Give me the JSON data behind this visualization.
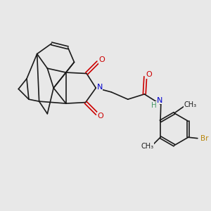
{
  "bg_color": "#e8e8e8",
  "bond_color": "#1a1a1a",
  "atoms": {
    "N": {
      "color": "#0000cc"
    },
    "O": {
      "color": "#cc0000"
    },
    "Br": {
      "color": "#b8860b"
    },
    "H": {
      "color": "#4a9a6a"
    },
    "C": {
      "color": "#1a1a1a"
    }
  },
  "line_width": 1.2,
  "fig_bg": "#e8e8e8"
}
